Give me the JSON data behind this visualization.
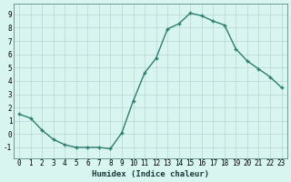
{
  "xlabel": "Humidex (Indice chaleur)",
  "x": [
    0,
    1,
    2,
    3,
    4,
    5,
    6,
    7,
    8,
    9,
    10,
    11,
    12,
    13,
    14,
    15,
    16,
    17,
    18,
    19,
    20,
    21,
    22,
    23
  ],
  "y": [
    1.5,
    1.2,
    0.3,
    -0.4,
    -0.8,
    -1.0,
    -1.0,
    -1.0,
    -1.1,
    0.1,
    2.5,
    4.6,
    5.7,
    7.9,
    8.3,
    9.1,
    8.9,
    8.5,
    8.2,
    6.4,
    5.5,
    4.9,
    4.3,
    3.5
  ],
  "line_color": "#2d7d6e",
  "marker": "+",
  "marker_size": 3.0,
  "bg_color": "#d8f5f0",
  "grid_color": "#b8d8d2",
  "ylim": [
    -1.8,
    9.8
  ],
  "yticks": [
    -1,
    0,
    1,
    2,
    3,
    4,
    5,
    6,
    7,
    8,
    9
  ],
  "xticks": [
    0,
    1,
    2,
    3,
    4,
    5,
    6,
    7,
    8,
    9,
    10,
    11,
    12,
    13,
    14,
    15,
    16,
    17,
    18,
    19,
    20,
    21,
    22,
    23
  ],
  "xlabel_fontsize": 6.5,
  "tick_fontsize": 5.5,
  "line_width": 1.0
}
